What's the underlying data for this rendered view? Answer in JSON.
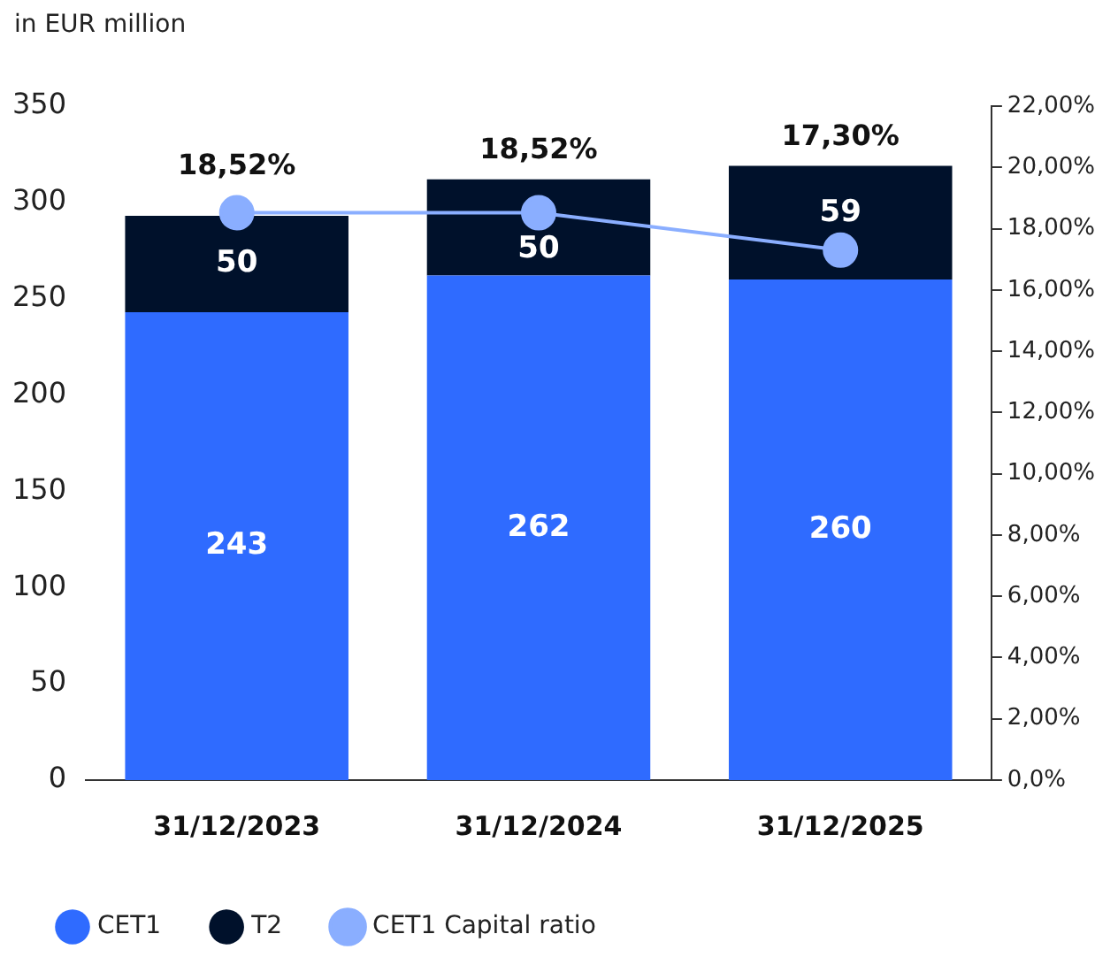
{
  "chart_data": {
    "type": "bar",
    "stacked": true,
    "ylabel": "in EUR million",
    "categories": [
      "31/12/2023",
      "31/12/2024",
      "31/12/2025"
    ],
    "series": [
      {
        "name": "CET1",
        "color": "#2f6bff",
        "values": [
          243,
          262,
          260
        ],
        "value_labels": [
          "243",
          "262",
          "260"
        ]
      },
      {
        "name": "T2",
        "color": "#00112b",
        "values": [
          50,
          50,
          59
        ],
        "value_labels": [
          "50",
          "50",
          "59"
        ]
      },
      {
        "name": "CET1 Capital ratio",
        "type": "line",
        "axis": "y2",
        "color": "#8aaeff",
        "marker": "circle",
        "values": [
          18.52,
          18.52,
          17.3
        ],
        "value_labels": [
          "18,52%",
          "18,52%",
          "17,30%"
        ]
      }
    ],
    "ylim": [
      0,
      350
    ],
    "yticks": [
      0,
      50,
      100,
      150,
      200,
      250,
      300,
      350
    ],
    "y2lim": [
      0,
      22
    ],
    "y2ticks": [
      {
        "value": 0,
        "label": "0,0%"
      },
      {
        "value": 2,
        "label": "2,00%"
      },
      {
        "value": 4,
        "label": "4,00%"
      },
      {
        "value": 6,
        "label": "6,00%"
      },
      {
        "value": 8,
        "label": "8,00%"
      },
      {
        "value": 10,
        "label": "10,00%"
      },
      {
        "value": 12,
        "label": "12,00%"
      },
      {
        "value": 14,
        "label": "14,00%"
      },
      {
        "value": 16,
        "label": "16,00%"
      },
      {
        "value": 18,
        "label": "18,00%"
      },
      {
        "value": 20,
        "label": "20,00%"
      },
      {
        "value": 22,
        "label": "22,00%"
      }
    ],
    "grid": false,
    "legend": "bottom left"
  }
}
